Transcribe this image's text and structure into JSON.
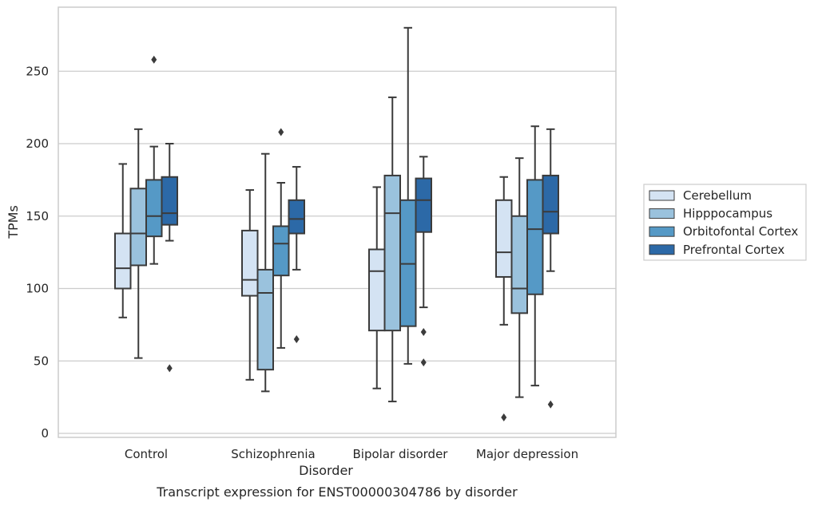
{
  "chart_data": {
    "type": "box",
    "title": "",
    "caption": "Transcript expression for ENST00000304786 by disorder",
    "xlabel": "Disorder",
    "ylabel": "TPMs",
    "ylim": [
      -2,
      295
    ],
    "yticks": [
      0,
      50,
      100,
      150,
      200,
      250
    ],
    "grid": true,
    "legend_position": "right",
    "categories": [
      "Control",
      "Schizophrenia",
      "Bipolar disorder",
      "Major depression"
    ],
    "series": [
      {
        "name": "Cerebellum",
        "color": "#d4e3f3",
        "boxes": [
          {
            "whislo": 80,
            "q1": 100,
            "med": 114,
            "q3": 138,
            "whishi": 186,
            "fliers": []
          },
          {
            "whislo": 37,
            "q1": 95,
            "med": 106,
            "q3": 140,
            "whishi": 168,
            "fliers": []
          },
          {
            "whislo": 31,
            "q1": 71,
            "med": 112,
            "q3": 127,
            "whishi": 170,
            "fliers": []
          },
          {
            "whislo": 75,
            "q1": 108,
            "med": 125,
            "q3": 161,
            "whishi": 177,
            "fliers": [
              11
            ]
          }
        ]
      },
      {
        "name": "Hipppocampus",
        "color": "#9ac2dd",
        "boxes": [
          {
            "whislo": 52,
            "q1": 116,
            "med": 138,
            "q3": 169,
            "whishi": 210,
            "fliers": []
          },
          {
            "whislo": 29,
            "q1": 44,
            "med": 97,
            "q3": 113,
            "whishi": 193,
            "fliers": []
          },
          {
            "whislo": 22,
            "q1": 71,
            "med": 152,
            "q3": 178,
            "whishi": 232,
            "fliers": []
          },
          {
            "whislo": 25,
            "q1": 83,
            "med": 100,
            "q3": 150,
            "whishi": 190,
            "fliers": []
          }
        ]
      },
      {
        "name": "Orbitofontal Cortex",
        "color": "#5599c6",
        "boxes": [
          {
            "whislo": 117,
            "q1": 136,
            "med": 150,
            "q3": 175,
            "whishi": 198,
            "fliers": [
              258
            ]
          },
          {
            "whislo": 59,
            "q1": 109,
            "med": 131,
            "q3": 143,
            "whishi": 173,
            "fliers": [
              208
            ]
          },
          {
            "whislo": 48,
            "q1": 74,
            "med": 117,
            "q3": 161,
            "whishi": 280,
            "fliers": []
          },
          {
            "whislo": 33,
            "q1": 96,
            "med": 141,
            "q3": 175,
            "whishi": 212,
            "fliers": []
          }
        ]
      },
      {
        "name": "Prefrontal Cortex",
        "color": "#2c69a7",
        "boxes": [
          {
            "whislo": 133,
            "q1": 144,
            "med": 152,
            "q3": 177,
            "whishi": 200,
            "fliers": [
              45
            ]
          },
          {
            "whislo": 113,
            "q1": 138,
            "med": 148,
            "q3": 161,
            "whishi": 184,
            "fliers": [
              65
            ]
          },
          {
            "whislo": 87,
            "q1": 139,
            "med": 161,
            "q3": 176,
            "whishi": 191,
            "fliers": [
              70,
              49
            ]
          },
          {
            "whislo": 112,
            "q1": 138,
            "med": 153,
            "q3": 178,
            "whishi": 210,
            "fliers": [
              20
            ]
          }
        ]
      }
    ]
  }
}
